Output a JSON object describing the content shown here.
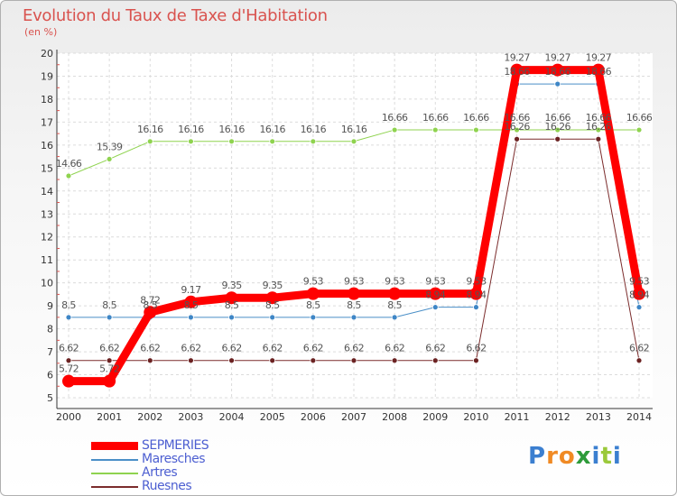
{
  "chart_data": {
    "type": "line",
    "title": "Evolution du Taux de Taxe d'Habitation",
    "subtitle": "(en %)",
    "x": [
      "2000",
      "2001",
      "2002",
      "2003",
      "2004",
      "2005",
      "2006",
      "2007",
      "2008",
      "2009",
      "2010",
      "2011",
      "2012",
      "2013",
      "2014"
    ],
    "ylim": [
      5,
      20
    ],
    "yticks": [
      "5",
      "6",
      "7",
      "8",
      "9",
      "10",
      "11",
      "12",
      "13",
      "14",
      "15",
      "16",
      "17",
      "18",
      "19",
      "20"
    ],
    "grid": true,
    "legend_placement": "bottom-left",
    "series": [
      {
        "name": "SEPMERIES",
        "color": "#ff0000",
        "values": [
          5.72,
          5.72,
          8.72,
          9.17,
          9.35,
          9.35,
          9.53,
          9.53,
          9.53,
          9.53,
          9.53,
          19.27,
          19.27,
          19.27,
          9.53
        ],
        "labels": [
          "5.72",
          "5.72",
          "8.72",
          "9.17",
          "9.35",
          "9.35",
          "9.53",
          "9.53",
          "9.53",
          "9.53",
          "9.53",
          "19.27",
          "19.27",
          "19.27",
          "9.53"
        ]
      },
      {
        "name": "Maresches",
        "color": "#4a8fc7",
        "values": [
          8.5,
          8.5,
          8.5,
          8.5,
          8.5,
          8.5,
          8.5,
          8.5,
          8.5,
          8.94,
          8.94,
          18.66,
          18.66,
          18.66,
          8.94
        ],
        "labels": [
          "8.5",
          "8.5",
          "8.5",
          "8.5",
          "8.5",
          "8.5",
          "8.5",
          "8.5",
          "8.5",
          "8.94",
          "8.94",
          "18.66",
          "18.66",
          "18.66",
          "8.94"
        ]
      },
      {
        "name": "Artres",
        "color": "#8fd34f",
        "values": [
          14.66,
          15.39,
          16.16,
          16.16,
          16.16,
          16.16,
          16.16,
          16.16,
          16.66,
          16.66,
          16.66,
          16.66,
          16.66,
          16.66,
          16.66
        ],
        "labels": [
          "14.66",
          "15.39",
          "16.16",
          "16.16",
          "16.16",
          "16.16",
          "16.16",
          "16.16",
          "16.66",
          "16.66",
          "16.66",
          "16.66",
          "16.66",
          "16.66",
          "16.66"
        ]
      },
      {
        "name": "Ruesnes",
        "color": "#7b2c2c",
        "values": [
          6.62,
          6.62,
          6.62,
          6.62,
          6.62,
          6.62,
          6.62,
          6.62,
          6.62,
          6.62,
          6.62,
          16.26,
          16.26,
          16.26,
          6.62
        ],
        "labels": [
          "6.62",
          "6.62",
          "6.62",
          "6.62",
          "6.62",
          "6.62",
          "6.62",
          "6.62",
          "6.62",
          "6.62",
          "6.62",
          "16.26",
          "16.26",
          "16.26",
          "6.62"
        ]
      }
    ]
  },
  "logo": {
    "text": "Proxiti",
    "letters": [
      "P",
      "r",
      "o",
      "x",
      "i",
      "t",
      "i"
    ],
    "colors": [
      "#3b7fd0",
      "#f08a24",
      "#f08a24",
      "#2e9b3a",
      "#3b7fd0",
      "#9bc93a",
      "#3b7fd0"
    ]
  }
}
